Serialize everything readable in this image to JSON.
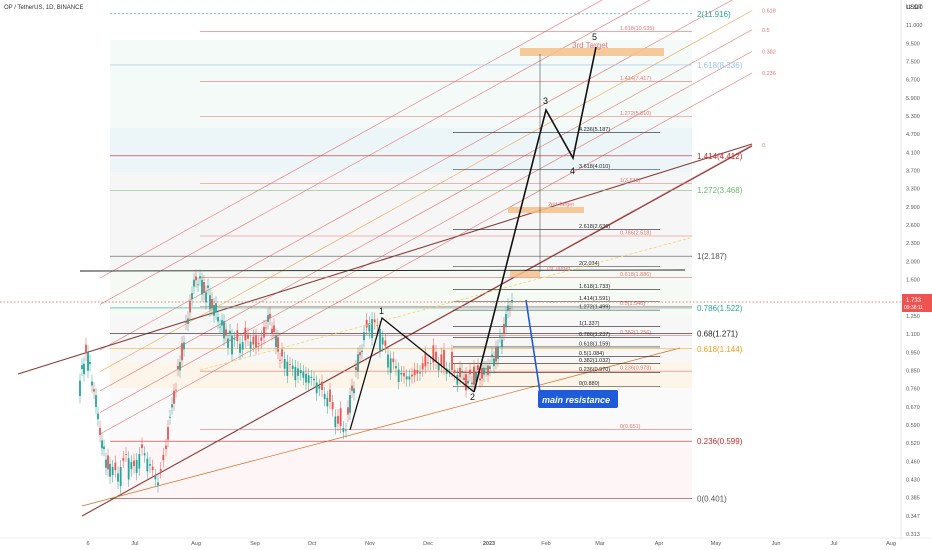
{
  "header": {
    "symbol": "OP / TetherUS, 1D, BINANCE",
    "currency": "USDT"
  },
  "colors": {
    "up": "#26a69a",
    "down": "#ef5350",
    "channel": "#8a3a3a",
    "fib_red": "#e57373",
    "fib_black": "#222222",
    "target": "#f4c08a",
    "callout": "#1e5bd8"
  },
  "current_price": {
    "value": "1.733",
    "time": "09:38:11"
  },
  "chart_data": {
    "type": "candlestick",
    "x_ticks": [
      "6",
      "Jul",
      "Aug",
      "Sep",
      "Oct",
      "Nov",
      "Dec",
      "2023",
      "Feb",
      "Mar",
      "Apr",
      "May",
      "Jun",
      "Jul",
      "Aug"
    ],
    "y_ticks": [
      "12.500",
      "11.000",
      "9.500",
      "7.500",
      "6.700",
      "5.900",
      "5.300",
      "4.700",
      "4.100",
      "3.700",
      "3.300",
      "2.900",
      "2.600",
      "2.300",
      "2.000",
      "1.600",
      "1.450",
      "1.250",
      "1.100",
      "0.950",
      "0.850",
      "0.760",
      "0.670",
      "0.590",
      "0.520",
      "0.460",
      "0.430",
      "0.385",
      "0.347",
      "0.313"
    ],
    "y_scale": "log",
    "price_range": [
      0.313,
      12.5
    ],
    "fib_large_left": [
      {
        "label": "2(11.916)",
        "price": 11.916,
        "color": "#26a69a"
      },
      {
        "label": "1.618(8.336)",
        "price": 8.336,
        "color": "#9bc2e6"
      },
      {
        "label": "1.414(4.412)",
        "price": 4.412,
        "color": "#c62828"
      },
      {
        "label": "1.272(3.468)",
        "price": 3.468,
        "color": "#66bb6a"
      },
      {
        "label": "1(2.187)",
        "price": 2.187,
        "color": "#555555"
      },
      {
        "label": "0.786(1.522)",
        "price": 1.522,
        "color": "#26a69a"
      },
      {
        "label": "0.68(1.271)",
        "price": 1.271,
        "color": "#222222"
      },
      {
        "label": "0.618(1.144)",
        "price": 1.144,
        "color": "#f39c12"
      },
      {
        "label": "0.236(0.599)",
        "price": 0.599,
        "color": "#c62828"
      },
      {
        "label": "0(0.401)",
        "price": 0.401,
        "color": "#555555"
      }
    ],
    "fib_red_levels": [
      {
        "label": "1.618(10.535)",
        "price": 10.535
      },
      {
        "label": "1.414(7.417)",
        "price": 7.417
      },
      {
        "label": "1.272(5.810)",
        "price": 5.81
      },
      {
        "label": "1(3.639)",
        "price": 3.639
      },
      {
        "label": "0.786(2.518)",
        "price": 2.518
      },
      {
        "label": "0.618(1.886)",
        "price": 1.886
      },
      {
        "label": "0.5(1.540)",
        "price": 1.54
      },
      {
        "label": "0.382(1.256)",
        "price": 1.256
      },
      {
        "label": "0.236(0.978)",
        "price": 0.978
      },
      {
        "label": "0(0.651)",
        "price": 0.651
      }
    ],
    "fib_black_levels": [
      {
        "label": "4.236(5.187)",
        "price": 5.187
      },
      {
        "label": "3.618(4.010)",
        "price": 4.01
      },
      {
        "label": "2.618(2.636)",
        "price": 2.636
      },
      {
        "label": "2(2.034)",
        "price": 2.034
      },
      {
        "label": "1.618(1.733)",
        "price": 1.733
      },
      {
        "label": "1.414(1.591)",
        "price": 1.591
      },
      {
        "label": "1.272(1.499)",
        "price": 1.499
      },
      {
        "label": "1(1.337)",
        "price": 1.337
      },
      {
        "label": "0.786(1.237)",
        "price": 1.237
      },
      {
        "label": "0.618(1.159)",
        "price": 1.159
      },
      {
        "label": "0.5(1.084)",
        "price": 1.084
      },
      {
        "label": "0.382(1.032)",
        "price": 1.032
      },
      {
        "label": "0.236(0.970)",
        "price": 0.97
      },
      {
        "label": "0(0.880)",
        "price": 0.88
      }
    ],
    "channel_labels": [
      "1.272",
      "1",
      "0.786",
      "0.618",
      "0.5",
      "0.382",
      "0.236",
      "0"
    ],
    "targets": [
      "3rd Target",
      "2nd Target",
      "1st Target"
    ],
    "waves": [
      "1",
      "2",
      "3",
      "4",
      "5"
    ],
    "annotation": "main resistance"
  }
}
